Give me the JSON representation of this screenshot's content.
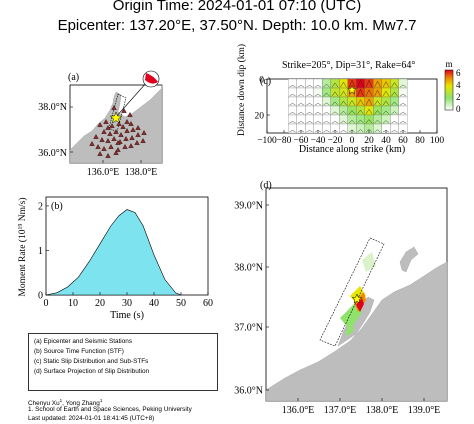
{
  "header": {
    "origin_time": "Origin Time: 2024-01-01 07:10 (UTC)",
    "epicenter": "Epicenter: 137.20°E, 37.50°N. Depth: 10.0 km. Mw7.7"
  },
  "panel_a": {
    "label": "(a)",
    "lat_ticks": [
      "38.0°N",
      "36.0°N"
    ],
    "lon_ticks": [
      "136.0°E",
      "138.0°E"
    ]
  },
  "panel_b": {
    "label": "(b)",
    "ylabel": "Moment Rate (10",
    "ylabel_exp": "19",
    "ylabel_unit": " Nm/s)",
    "xlabel": "Time (s)",
    "x_ticks": [
      "0",
      "10",
      "20",
      "30",
      "40",
      "50",
      "60"
    ],
    "y_ticks": [
      "0",
      "1",
      "2"
    ]
  },
  "panel_c": {
    "label": "(c)",
    "mechanism": "Strike=205°, Dip=31°, Rake=64°",
    "xlabel": "Distance along strike (km)",
    "ylabel": "Distance down dip (km)",
    "x_ticks": [
      "−100",
      "−80",
      "−60",
      "−40",
      "−20",
      "0",
      "20",
      "40",
      "60",
      "80",
      "100"
    ],
    "y_ticks": [
      "0",
      "20"
    ],
    "colorbar_unit": "m",
    "colorbar_ticks": [
      "6",
      "4",
      "2",
      "0"
    ]
  },
  "panel_d": {
    "label": "(d)",
    "lat_ticks": [
      "39.0°N",
      "38.0°N",
      "37.0°N",
      "36.0°N"
    ],
    "lon_ticks": [
      "136.0°E",
      "137.0°E",
      "138.0°E",
      "139.0°E"
    ]
  },
  "legend": {
    "items": [
      "(a) Epicenter and Seismic Stations",
      "(b) Source Time Function (STF)",
      "(c) Static Slip Distribution and Sub-STFs",
      "(d) Surface Projection of Slip Distribution"
    ]
  },
  "credits": {
    "authors": "Chenyu Xu",
    "author_sup": "1",
    "author_sep": ", Yong Zhang",
    "author2_sup": "1",
    "affiliation": "1. School of Earth and Space Sciences, Peking University",
    "updated": "Last updated: 2024-01-01 18:41:45 (UTC+8)"
  },
  "colors": {
    "stf_fill": "#7de3ef",
    "land": "#b8b8b8",
    "slip_low": "#8fe36b",
    "slip_mid": "#e6e600",
    "slip_high": "#e0001c",
    "station": "#8b2a2a",
    "epicenter_star": "#ffff00"
  },
  "chart_data": [
    {
      "type": "area",
      "panel": "b",
      "x": [
        0,
        4,
        8,
        12,
        16,
        20,
        24,
        27,
        30,
        33,
        36,
        40,
        44,
        48,
        50
      ],
      "y": [
        0.0,
        0.05,
        0.18,
        0.4,
        0.75,
        1.15,
        1.55,
        1.78,
        1.92,
        1.85,
        1.55,
        0.9,
        0.35,
        0.05,
        0.0
      ],
      "xlim": [
        0,
        60
      ],
      "ylim": [
        0,
        2.2
      ]
    },
    {
      "type": "heatmap",
      "panel": "c",
      "unit": "m",
      "zlim": [
        0,
        6
      ],
      "xlim": [
        -100,
        100
      ],
      "ylim": [
        30,
        0
      ],
      "subfault_x": [
        -70,
        -60,
        -50,
        -40,
        -30,
        -20,
        -10,
        0,
        10,
        20,
        30,
        40,
        50,
        60
      ],
      "subfault_y": [
        2.5,
        7.5,
        12.5,
        17.5,
        22.5,
        27.5
      ],
      "slip": [
        [
          0,
          0,
          0,
          0,
          1.2,
          2.5,
          3.5,
          5.5,
          6,
          5.5,
          4.5,
          4,
          3,
          0.5
        ],
        [
          0,
          0,
          0,
          0.2,
          1.5,
          2.8,
          3.2,
          4.5,
          5.5,
          5,
          4.5,
          3.5,
          2.5,
          0.2
        ],
        [
          0,
          0,
          0,
          0,
          0.5,
          1.5,
          2.5,
          3,
          4,
          4.5,
          3,
          2.5,
          1.5,
          0
        ],
        [
          0,
          0,
          0,
          0,
          0,
          0.5,
          1.2,
          2,
          2.5,
          3.5,
          2,
          1.5,
          0.8,
          0
        ],
        [
          0,
          0,
          0,
          0,
          0,
          0,
          0.5,
          1.2,
          1.5,
          2,
          1.2,
          0.8,
          0,
          0
        ],
        [
          0,
          0,
          0,
          0,
          0,
          0,
          0,
          0.5,
          0.8,
          1.2,
          0.6,
          0,
          0,
          0
        ]
      ]
    }
  ]
}
